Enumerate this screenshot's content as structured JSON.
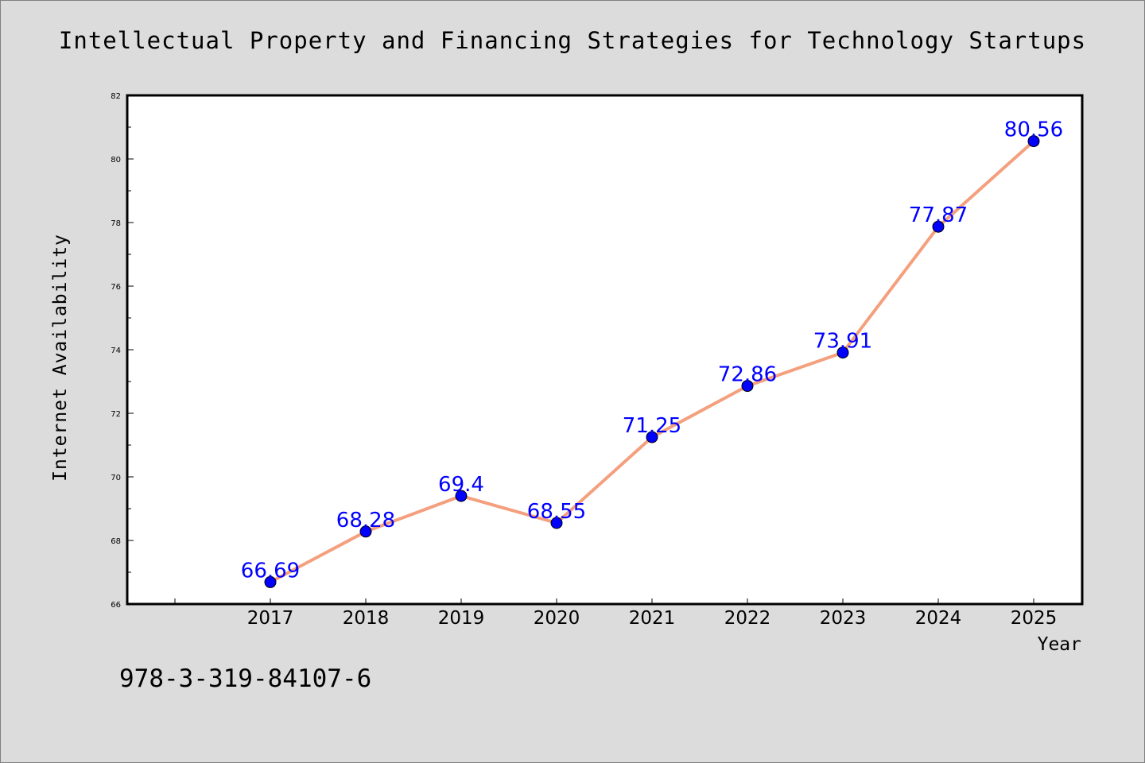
{
  "page": {
    "title": "Intellectual Property and Financing Strategies for Technology Startups",
    "footer_code": "978-3-319-84107-6"
  },
  "chart_data": {
    "type": "line",
    "title": "Intellectual Property and Financing Strategies for Technology Startups",
    "xlabel": "Year",
    "ylabel": "Internet Availability",
    "x": [
      "2017",
      "2018",
      "2019",
      "2020",
      "2021",
      "2022",
      "2023",
      "2024",
      "2025"
    ],
    "series": [
      {
        "values": [
          66.69,
          68.28,
          69.4,
          68.55,
          71.25,
          72.86,
          73.91,
          77.87,
          80.56
        ],
        "data_labels": [
          "66.69",
          "68.28",
          "69.4",
          "68.55",
          "71.25",
          "72.86",
          "73.91",
          "77.87",
          "80.56"
        ],
        "line_color": "#f4a07e",
        "marker_color": "#0000ff"
      }
    ],
    "ylim": [
      66,
      82
    ],
    "y_ticks": [
      "66",
      "68",
      "70",
      "72",
      "74",
      "76",
      "78",
      "80",
      "82"
    ],
    "grid": false,
    "legend": "none"
  }
}
